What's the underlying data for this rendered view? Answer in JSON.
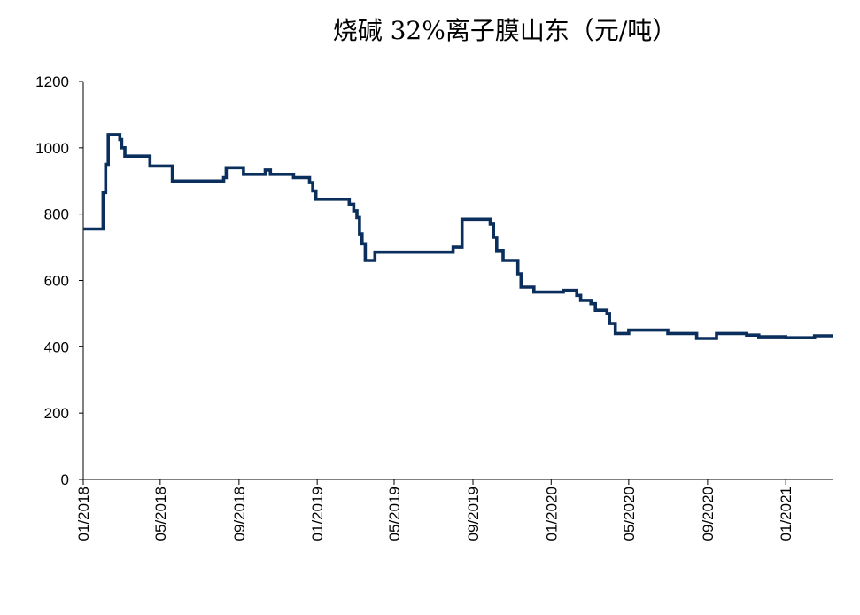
{
  "chart_data": {
    "type": "line",
    "title": "烧碱 32%离子膜山东（元/吨）",
    "xlabel": "",
    "ylabel": "",
    "ylim": [
      0,
      1200
    ],
    "yticks": [
      "0",
      "200",
      "400",
      "600",
      "800",
      "1000",
      "1200"
    ],
    "xticks": [
      "01/2018",
      "05/2018",
      "09/2018",
      "01/2019",
      "05/2019",
      "09/2019",
      "01/2020",
      "05/2020",
      "09/2020",
      "01/2021"
    ],
    "grid": false,
    "legend": "none",
    "line_color": "#0a2f5c",
    "series": [
      {
        "points": [
          [
            "2018-01-01",
            755
          ],
          [
            "2018-02-01",
            755
          ],
          [
            "2018-02-01",
            865
          ],
          [
            "2018-02-05",
            865
          ],
          [
            "2018-02-05",
            950
          ],
          [
            "2018-02-09",
            950
          ],
          [
            "2018-02-09",
            1040
          ],
          [
            "2018-02-27",
            1040
          ],
          [
            "2018-02-27",
            1025
          ],
          [
            "2018-03-02",
            1025
          ],
          [
            "2018-03-02",
            1000
          ],
          [
            "2018-03-07",
            1000
          ],
          [
            "2018-03-07",
            975
          ],
          [
            "2018-04-15",
            975
          ],
          [
            "2018-04-15",
            945
          ],
          [
            "2018-05-20",
            945
          ],
          [
            "2018-05-20",
            900
          ],
          [
            "2018-08-08",
            900
          ],
          [
            "2018-08-08",
            910
          ],
          [
            "2018-08-12",
            910
          ],
          [
            "2018-08-12",
            940
          ],
          [
            "2018-09-08",
            940
          ],
          [
            "2018-09-08",
            920
          ],
          [
            "2018-10-12",
            920
          ],
          [
            "2018-10-12",
            933
          ],
          [
            "2018-10-20",
            933
          ],
          [
            "2018-10-20",
            920
          ],
          [
            "2018-11-25",
            920
          ],
          [
            "2018-11-25",
            910
          ],
          [
            "2018-12-20",
            910
          ],
          [
            "2018-12-20",
            895
          ],
          [
            "2018-12-25",
            895
          ],
          [
            "2018-12-25",
            870
          ],
          [
            "2018-12-30",
            870
          ],
          [
            "2018-12-30",
            845
          ],
          [
            "2019-02-20",
            845
          ],
          [
            "2019-02-20",
            830
          ],
          [
            "2019-02-27",
            830
          ],
          [
            "2019-02-27",
            810
          ],
          [
            "2019-03-04",
            810
          ],
          [
            "2019-03-04",
            790
          ],
          [
            "2019-03-08",
            790
          ],
          [
            "2019-03-08",
            740
          ],
          [
            "2019-03-12",
            740
          ],
          [
            "2019-03-12",
            710
          ],
          [
            "2019-03-17",
            710
          ],
          [
            "2019-03-17",
            660
          ],
          [
            "2019-04-01",
            660
          ],
          [
            "2019-04-01",
            685
          ],
          [
            "2019-08-01",
            685
          ],
          [
            "2019-08-01",
            700
          ],
          [
            "2019-08-15",
            700
          ],
          [
            "2019-08-15",
            785
          ],
          [
            "2019-09-28",
            785
          ],
          [
            "2019-09-28",
            770
          ],
          [
            "2019-10-03",
            770
          ],
          [
            "2019-10-03",
            730
          ],
          [
            "2019-10-08",
            730
          ],
          [
            "2019-10-08",
            690
          ],
          [
            "2019-10-18",
            690
          ],
          [
            "2019-10-18",
            660
          ],
          [
            "2019-11-10",
            660
          ],
          [
            "2019-11-10",
            620
          ],
          [
            "2019-11-15",
            620
          ],
          [
            "2019-11-15",
            580
          ],
          [
            "2019-12-05",
            580
          ],
          [
            "2019-12-05",
            565
          ],
          [
            "2020-01-20",
            565
          ],
          [
            "2020-01-20",
            570
          ],
          [
            "2020-02-10",
            570
          ],
          [
            "2020-02-10",
            555
          ],
          [
            "2020-02-16",
            555
          ],
          [
            "2020-02-16",
            540
          ],
          [
            "2020-03-03",
            540
          ],
          [
            "2020-03-03",
            530
          ],
          [
            "2020-03-10",
            530
          ],
          [
            "2020-03-10",
            510
          ],
          [
            "2020-03-28",
            510
          ],
          [
            "2020-03-28",
            500
          ],
          [
            "2020-04-01",
            500
          ],
          [
            "2020-04-01",
            470
          ],
          [
            "2020-04-10",
            470
          ],
          [
            "2020-04-10",
            440
          ],
          [
            "2020-05-01",
            440
          ],
          [
            "2020-05-01",
            450
          ],
          [
            "2020-07-01",
            450
          ],
          [
            "2020-07-01",
            440
          ],
          [
            "2020-08-15",
            440
          ],
          [
            "2020-08-15",
            425
          ],
          [
            "2020-09-15",
            425
          ],
          [
            "2020-09-15",
            440
          ],
          [
            "2020-11-01",
            440
          ],
          [
            "2020-11-01",
            435
          ],
          [
            "2020-11-20",
            435
          ],
          [
            "2020-11-20",
            430
          ],
          [
            "2021-01-01",
            430
          ],
          [
            "2021-01-01",
            427
          ],
          [
            "2021-02-15",
            427
          ],
          [
            "2021-02-15",
            433
          ],
          [
            "2021-03-15",
            433
          ]
        ]
      }
    ]
  }
}
